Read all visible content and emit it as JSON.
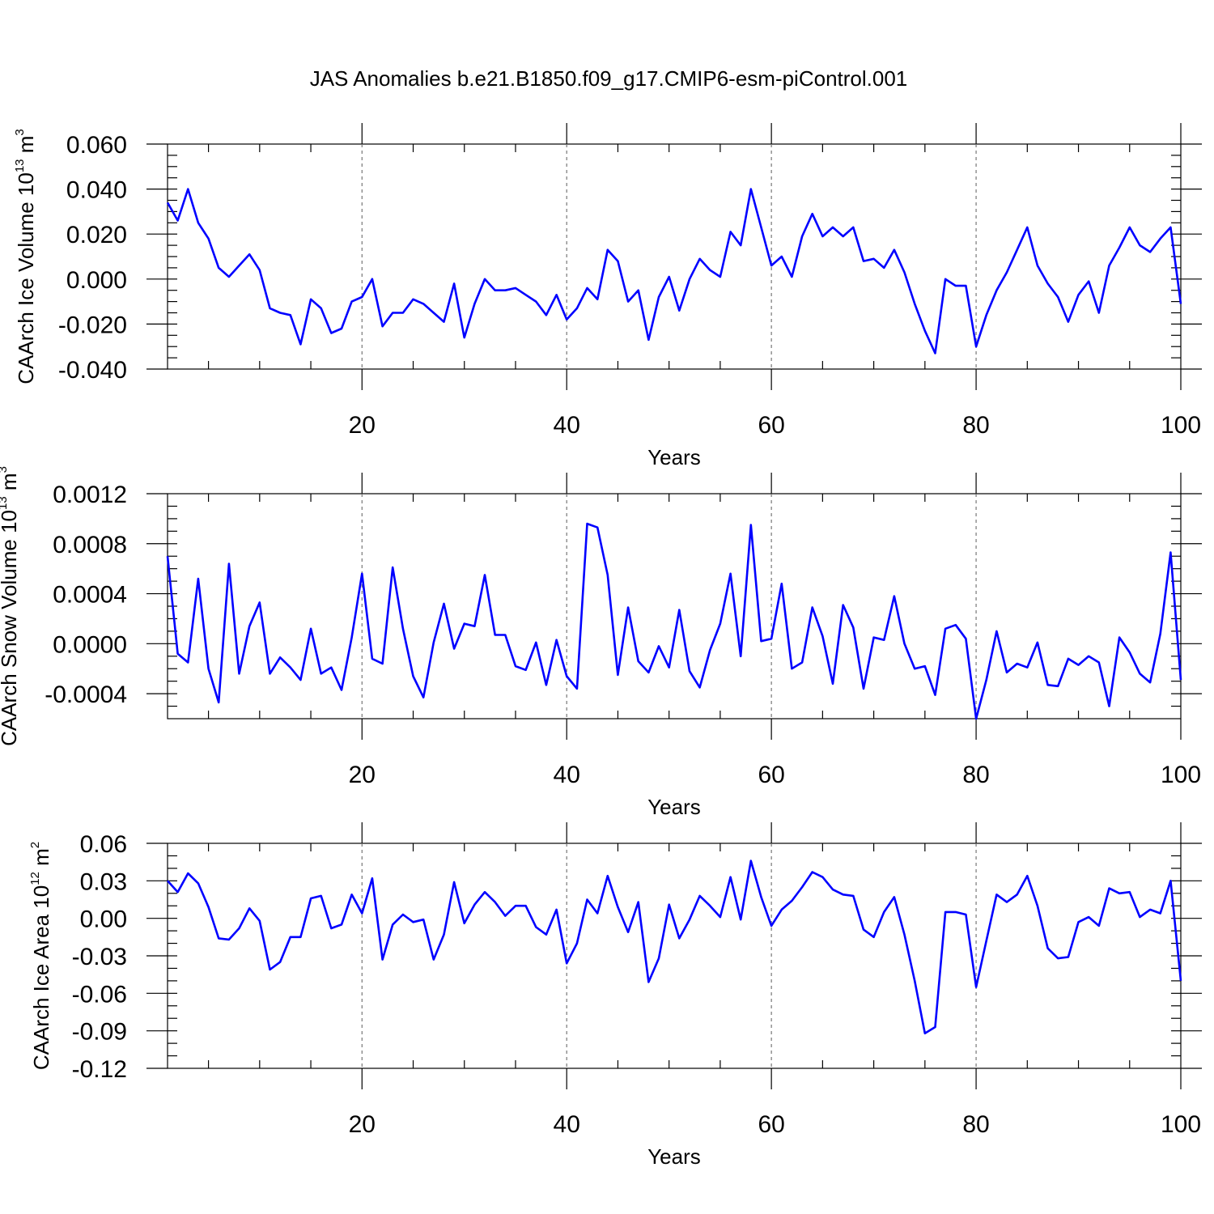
{
  "title": "JAS Anomalies b.e21.B1850.f09_g17.CMIP6-esm-piControl.001",
  "line_color": "#0000ff",
  "chart_data": [
    {
      "type": "line",
      "ylabel": "CAArch Ice Volume 10",
      "ylabel_exp": "13",
      "ylabel_unit": " m",
      "ylabel_unit_exp": "3",
      "xlabel": "Years",
      "xlim": [
        1,
        100
      ],
      "ylim": [
        -0.04,
        0.06
      ],
      "x_ticks": [
        20,
        40,
        60,
        80,
        100
      ],
      "x_tick_labels": [
        "20",
        "40",
        "60",
        "80",
        "100"
      ],
      "y_ticks": [
        -0.04,
        -0.02,
        0.0,
        0.02,
        0.04,
        0.06
      ],
      "y_tick_labels": [
        "-0.040",
        "-0.020",
        "0.000",
        "0.020",
        "0.040",
        "0.060"
      ],
      "y_minor_step": 0.005,
      "grid_x": [
        20,
        40,
        60,
        80
      ],
      "x": [
        1,
        2,
        3,
        4,
        5,
        6,
        7,
        8,
        9,
        10,
        11,
        12,
        13,
        14,
        15,
        16,
        17,
        18,
        19,
        20,
        21,
        22,
        23,
        24,
        25,
        26,
        27,
        28,
        29,
        30,
        31,
        32,
        33,
        34,
        35,
        36,
        37,
        38,
        39,
        40,
        41,
        42,
        43,
        44,
        45,
        46,
        47,
        48,
        49,
        50,
        51,
        52,
        53,
        54,
        55,
        56,
        57,
        58,
        59,
        60,
        61,
        62,
        63,
        64,
        65,
        66,
        67,
        68,
        69,
        70,
        71,
        72,
        73,
        74,
        75,
        76,
        77,
        78,
        79,
        80,
        81,
        82,
        83,
        84,
        85,
        86,
        87,
        88,
        89,
        90,
        91,
        92,
        93,
        94,
        95,
        96,
        97,
        98,
        99,
        100
      ],
      "values": [
        0.034,
        0.026,
        0.04,
        0.025,
        0.018,
        0.005,
        0.001,
        0.006,
        0.011,
        0.004,
        -0.013,
        -0.015,
        -0.016,
        -0.029,
        -0.009,
        -0.013,
        -0.024,
        -0.022,
        -0.01,
        -0.008,
        0.0,
        -0.021,
        -0.015,
        -0.015,
        -0.009,
        -0.011,
        -0.015,
        -0.019,
        -0.002,
        -0.026,
        -0.011,
        0.0,
        -0.005,
        -0.005,
        -0.004,
        -0.007,
        -0.01,
        -0.016,
        -0.007,
        -0.018,
        -0.013,
        -0.004,
        -0.009,
        0.013,
        0.008,
        -0.01,
        -0.005,
        -0.027,
        -0.008,
        0.001,
        -0.014,
        0.0,
        0.009,
        0.004,
        0.001,
        0.021,
        0.015,
        0.04,
        0.023,
        0.006,
        0.01,
        0.001,
        0.019,
        0.029,
        0.019,
        0.023,
        0.019,
        0.023,
        0.008,
        0.009,
        0.005,
        0.013,
        0.003,
        -0.011,
        -0.023,
        -0.033,
        0.0,
        -0.003,
        -0.003,
        -0.03,
        -0.016,
        -0.005,
        0.003,
        0.013,
        0.023,
        0.006,
        -0.002,
        -0.008,
        -0.019,
        -0.007,
        -0.001,
        -0.015,
        0.006,
        0.014,
        0.023,
        0.015,
        0.012,
        0.018,
        0.023,
        -0.011
      ]
    },
    {
      "type": "line",
      "ylabel": "CAArch Snow Volume 10",
      "ylabel_exp": "13",
      "ylabel_unit": " m",
      "ylabel_unit_exp": "3",
      "xlabel": "Years",
      "xlim": [
        1,
        100
      ],
      "ylim": [
        -0.0006,
        0.0012
      ],
      "x_ticks": [
        20,
        40,
        60,
        80,
        100
      ],
      "x_tick_labels": [
        "20",
        "40",
        "60",
        "80",
        "100"
      ],
      "y_ticks": [
        -0.0004,
        0.0,
        0.0004,
        0.0008,
        0.0012
      ],
      "y_tick_labels": [
        "-0.0004",
        "0.0000",
        "0.0004",
        "0.0008",
        "0.0012"
      ],
      "y_minor_step": 0.0001,
      "grid_x": [
        20,
        40,
        60,
        80
      ],
      "x": [
        1,
        2,
        3,
        4,
        5,
        6,
        7,
        8,
        9,
        10,
        11,
        12,
        13,
        14,
        15,
        16,
        17,
        18,
        19,
        20,
        21,
        22,
        23,
        24,
        25,
        26,
        27,
        28,
        29,
        30,
        31,
        32,
        33,
        34,
        35,
        36,
        37,
        38,
        39,
        40,
        41,
        42,
        43,
        44,
        45,
        46,
        47,
        48,
        49,
        50,
        51,
        52,
        53,
        54,
        55,
        56,
        57,
        58,
        59,
        60,
        61,
        62,
        63,
        64,
        65,
        66,
        67,
        68,
        69,
        70,
        71,
        72,
        73,
        74,
        75,
        76,
        77,
        78,
        79,
        80,
        81,
        82,
        83,
        84,
        85,
        86,
        87,
        88,
        89,
        90,
        91,
        92,
        93,
        94,
        95,
        96,
        97,
        98,
        99,
        100
      ],
      "values": [
        0.0007,
        -8e-05,
        -0.00015,
        0.00052,
        -0.0002,
        -0.00047,
        0.00064,
        -0.00024,
        0.00014,
        0.00033,
        -0.00024,
        -0.00011,
        -0.00019,
        -0.00029,
        0.00012,
        -0.00024,
        -0.00019,
        -0.00037,
        5e-05,
        0.00056,
        -0.00012,
        -0.00016,
        0.00061,
        0.00012,
        -0.00026,
        -0.00043,
        1e-05,
        0.00032,
        -4e-05,
        0.00016,
        0.00014,
        0.00055,
        7e-05,
        7e-05,
        -0.00018,
        -0.00021,
        1e-05,
        -0.00033,
        3e-05,
        -0.00026,
        -0.00036,
        0.00096,
        0.00093,
        0.00055,
        -0.00025,
        0.00029,
        -0.00014,
        -0.00023,
        -2e-05,
        -0.00019,
        0.00027,
        -0.00022,
        -0.00035,
        -5e-05,
        0.00016,
        0.00056,
        -0.0001,
        0.00095,
        2e-05,
        4e-05,
        0.00048,
        -0.0002,
        -0.00015,
        0.00029,
        6e-05,
        -0.00032,
        0.00031,
        0.00013,
        -0.00036,
        5e-05,
        3e-05,
        0.00038,
        0.0,
        -0.0002,
        -0.00018,
        -0.00041,
        0.00012,
        0.00015,
        4e-05,
        -0.0006,
        -0.00029,
        0.0001,
        -0.00023,
        -0.00016,
        -0.00019,
        1e-05,
        -0.00033,
        -0.00034,
        -0.00012,
        -0.00017,
        -0.0001,
        -0.00015,
        -0.0005,
        5e-05,
        -7e-05,
        -0.00024,
        -0.00031,
        8e-05,
        0.00073,
        -0.00029
      ]
    },
    {
      "type": "line",
      "ylabel": "CAArch Ice Area 10",
      "ylabel_exp": "12",
      "ylabel_unit": " m",
      "ylabel_unit_exp": "2",
      "xlabel": "Years",
      "xlim": [
        1,
        100
      ],
      "ylim": [
        -0.12,
        0.06
      ],
      "x_ticks": [
        20,
        40,
        60,
        80,
        100
      ],
      "x_tick_labels": [
        "20",
        "40",
        "60",
        "80",
        "100"
      ],
      "y_ticks": [
        -0.12,
        -0.09,
        -0.06,
        -0.03,
        0.0,
        0.03,
        0.06
      ],
      "y_tick_labels": [
        "-0.12",
        "-0.09",
        "-0.06",
        "-0.03",
        "0.00",
        "0.03",
        "0.06"
      ],
      "y_minor_step": 0.01,
      "grid_x": [
        20,
        40,
        60,
        80
      ],
      "x": [
        1,
        2,
        3,
        4,
        5,
        6,
        7,
        8,
        9,
        10,
        11,
        12,
        13,
        14,
        15,
        16,
        17,
        18,
        19,
        20,
        21,
        22,
        23,
        24,
        25,
        26,
        27,
        28,
        29,
        30,
        31,
        32,
        33,
        34,
        35,
        36,
        37,
        38,
        39,
        40,
        41,
        42,
        43,
        44,
        45,
        46,
        47,
        48,
        49,
        50,
        51,
        52,
        53,
        54,
        55,
        56,
        57,
        58,
        59,
        60,
        61,
        62,
        63,
        64,
        65,
        66,
        67,
        68,
        69,
        70,
        71,
        72,
        73,
        74,
        75,
        76,
        77,
        78,
        79,
        80,
        81,
        82,
        83,
        84,
        85,
        86,
        87,
        88,
        89,
        90,
        91,
        92,
        93,
        94,
        95,
        96,
        97,
        98,
        99,
        100
      ],
      "values": [
        0.03,
        0.021,
        0.036,
        0.028,
        0.009,
        -0.016,
        -0.017,
        -0.008,
        0.008,
        -0.002,
        -0.041,
        -0.035,
        -0.015,
        -0.015,
        0.016,
        0.018,
        -0.008,
        -0.005,
        0.019,
        0.004,
        0.032,
        -0.033,
        -0.005,
        0.003,
        -0.003,
        -0.001,
        -0.033,
        -0.013,
        0.029,
        -0.004,
        0.011,
        0.021,
        0.013,
        0.002,
        0.01,
        0.01,
        -0.007,
        -0.013,
        0.007,
        -0.036,
        -0.02,
        0.015,
        0.004,
        0.034,
        0.009,
        -0.011,
        0.013,
        -0.051,
        -0.032,
        0.011,
        -0.016,
        -0.001,
        0.018,
        0.01,
        0.001,
        0.033,
        -0.001,
        0.046,
        0.017,
        -0.006,
        0.007,
        0.014,
        0.025,
        0.037,
        0.033,
        0.023,
        0.019,
        0.018,
        -0.009,
        -0.015,
        0.005,
        0.017,
        -0.013,
        -0.05,
        -0.092,
        -0.087,
        0.005,
        0.005,
        0.003,
        -0.055,
        -0.018,
        0.019,
        0.013,
        0.019,
        0.034,
        0.01,
        -0.024,
        -0.032,
        -0.031,
        -0.003,
        0.001,
        -0.006,
        0.024,
        0.02,
        0.021,
        0.001,
        0.007,
        0.004,
        0.03,
        -0.05
      ]
    }
  ]
}
